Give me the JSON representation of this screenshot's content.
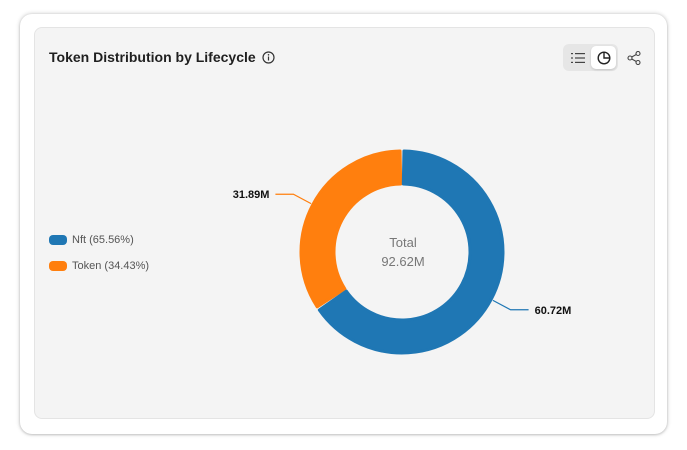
{
  "title": "Token Distribution by Lifecycle",
  "icons": {
    "info": "info-icon",
    "list_view": "list-icon",
    "pie_view": "pie-chart-icon",
    "share": "share-icon"
  },
  "view_toggle": {
    "selected": "pie"
  },
  "chart_data": {
    "type": "pie",
    "subtype": "donut",
    "center_label": "Total",
    "center_value": "92.62M",
    "legend_position": "left",
    "slices": [
      {
        "name": "Nft (65.56%)",
        "value": 60.72,
        "display": "60.72M",
        "color": "#1f77b4"
      },
      {
        "name": "Token (34.43%)",
        "value": 31.89,
        "display": "31.89M",
        "color": "#ff7f0e"
      }
    ]
  }
}
